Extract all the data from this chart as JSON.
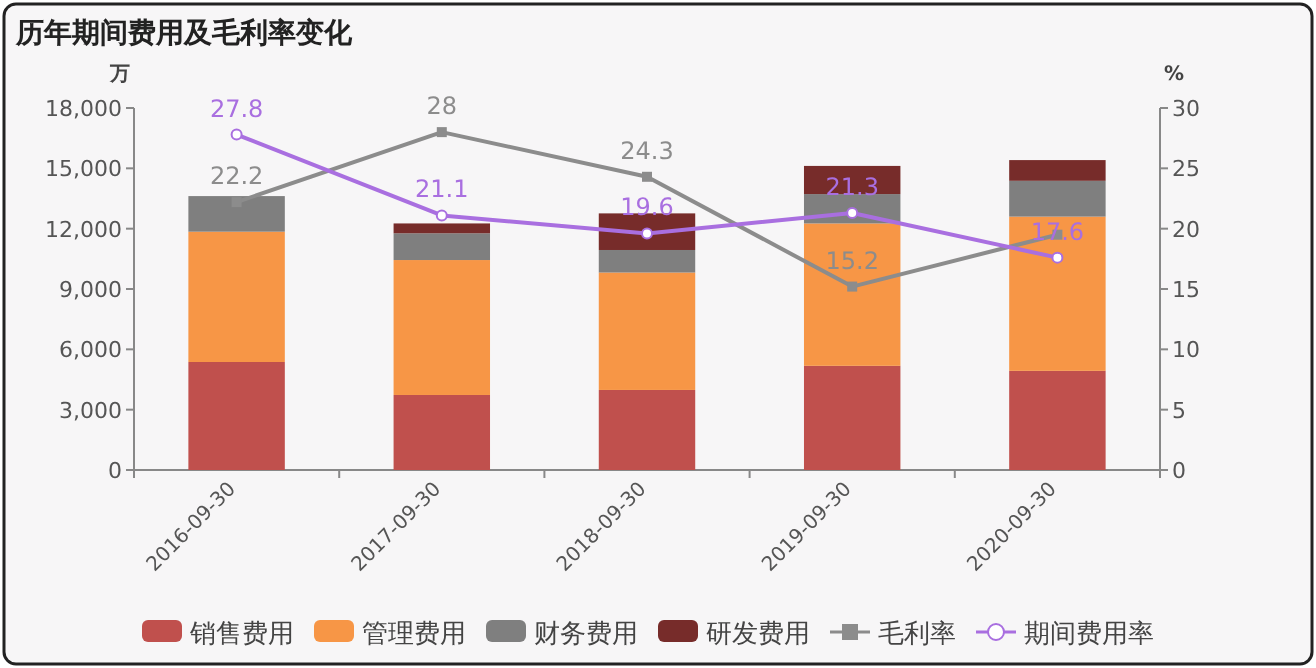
{
  "chart_data": {
    "type": "bar",
    "title": "历年期间费用及毛利率变化",
    "ylabel": "万",
    "y2label": "%",
    "categories": [
      "2016-09-30",
      "2017-09-30",
      "2018-09-30",
      "2019-09-30",
      "2020-09-30"
    ],
    "stacked": true,
    "series": [
      {
        "name": "销售费用",
        "color": "#c0504d",
        "values": [
          5370,
          3730,
          3980,
          5180,
          4930
        ]
      },
      {
        "name": "管理费用",
        "color": "#f79646",
        "values": [
          6480,
          6710,
          5840,
          7080,
          7670
        ]
      },
      {
        "name": "财务费用",
        "color": "#7f7f7f",
        "values": [
          1770,
          1330,
          1120,
          1460,
          1780
        ]
      },
      {
        "name": "研发费用",
        "color": "#772c2a",
        "values": [
          null,
          490,
          1820,
          1400,
          1030
        ]
      },
      {
        "name": "毛利率",
        "type": "line",
        "axis": "y2",
        "color": "#8c8c8c",
        "marker": "square",
        "values": [
          22.2,
          28,
          24.3,
          15.2,
          19.5
        ],
        "value_labels": [
          "22.2",
          "28",
          "24.3",
          "15.2",
          null
        ]
      },
      {
        "name": "期间费用率",
        "type": "line",
        "axis": "y2",
        "color": "#a96fe0",
        "marker": "circle",
        "values": [
          27.8,
          21.1,
          19.6,
          21.3,
          17.6
        ],
        "value_labels": [
          "27.8",
          "21.1",
          "19.6",
          "21.3",
          "17.6"
        ]
      }
    ],
    "ylim": [
      0,
      18000
    ],
    "yticks": [
      0,
      {
        "value": 3000,
        "label": "3,000"
      },
      {
        "value": 6000,
        "label": "6,000"
      },
      {
        "value": 9000,
        "label": "9,000"
      },
      {
        "value": 12000,
        "label": "12,000"
      },
      {
        "value": 15000,
        "label": "15,000"
      },
      {
        "value": 18000,
        "label": "18,000"
      }
    ],
    "y2lim": [
      0,
      30
    ],
    "y2ticks": [
      0,
      5,
      10,
      15,
      20,
      25,
      30
    ],
    "grid": false,
    "legend": "bottom"
  }
}
